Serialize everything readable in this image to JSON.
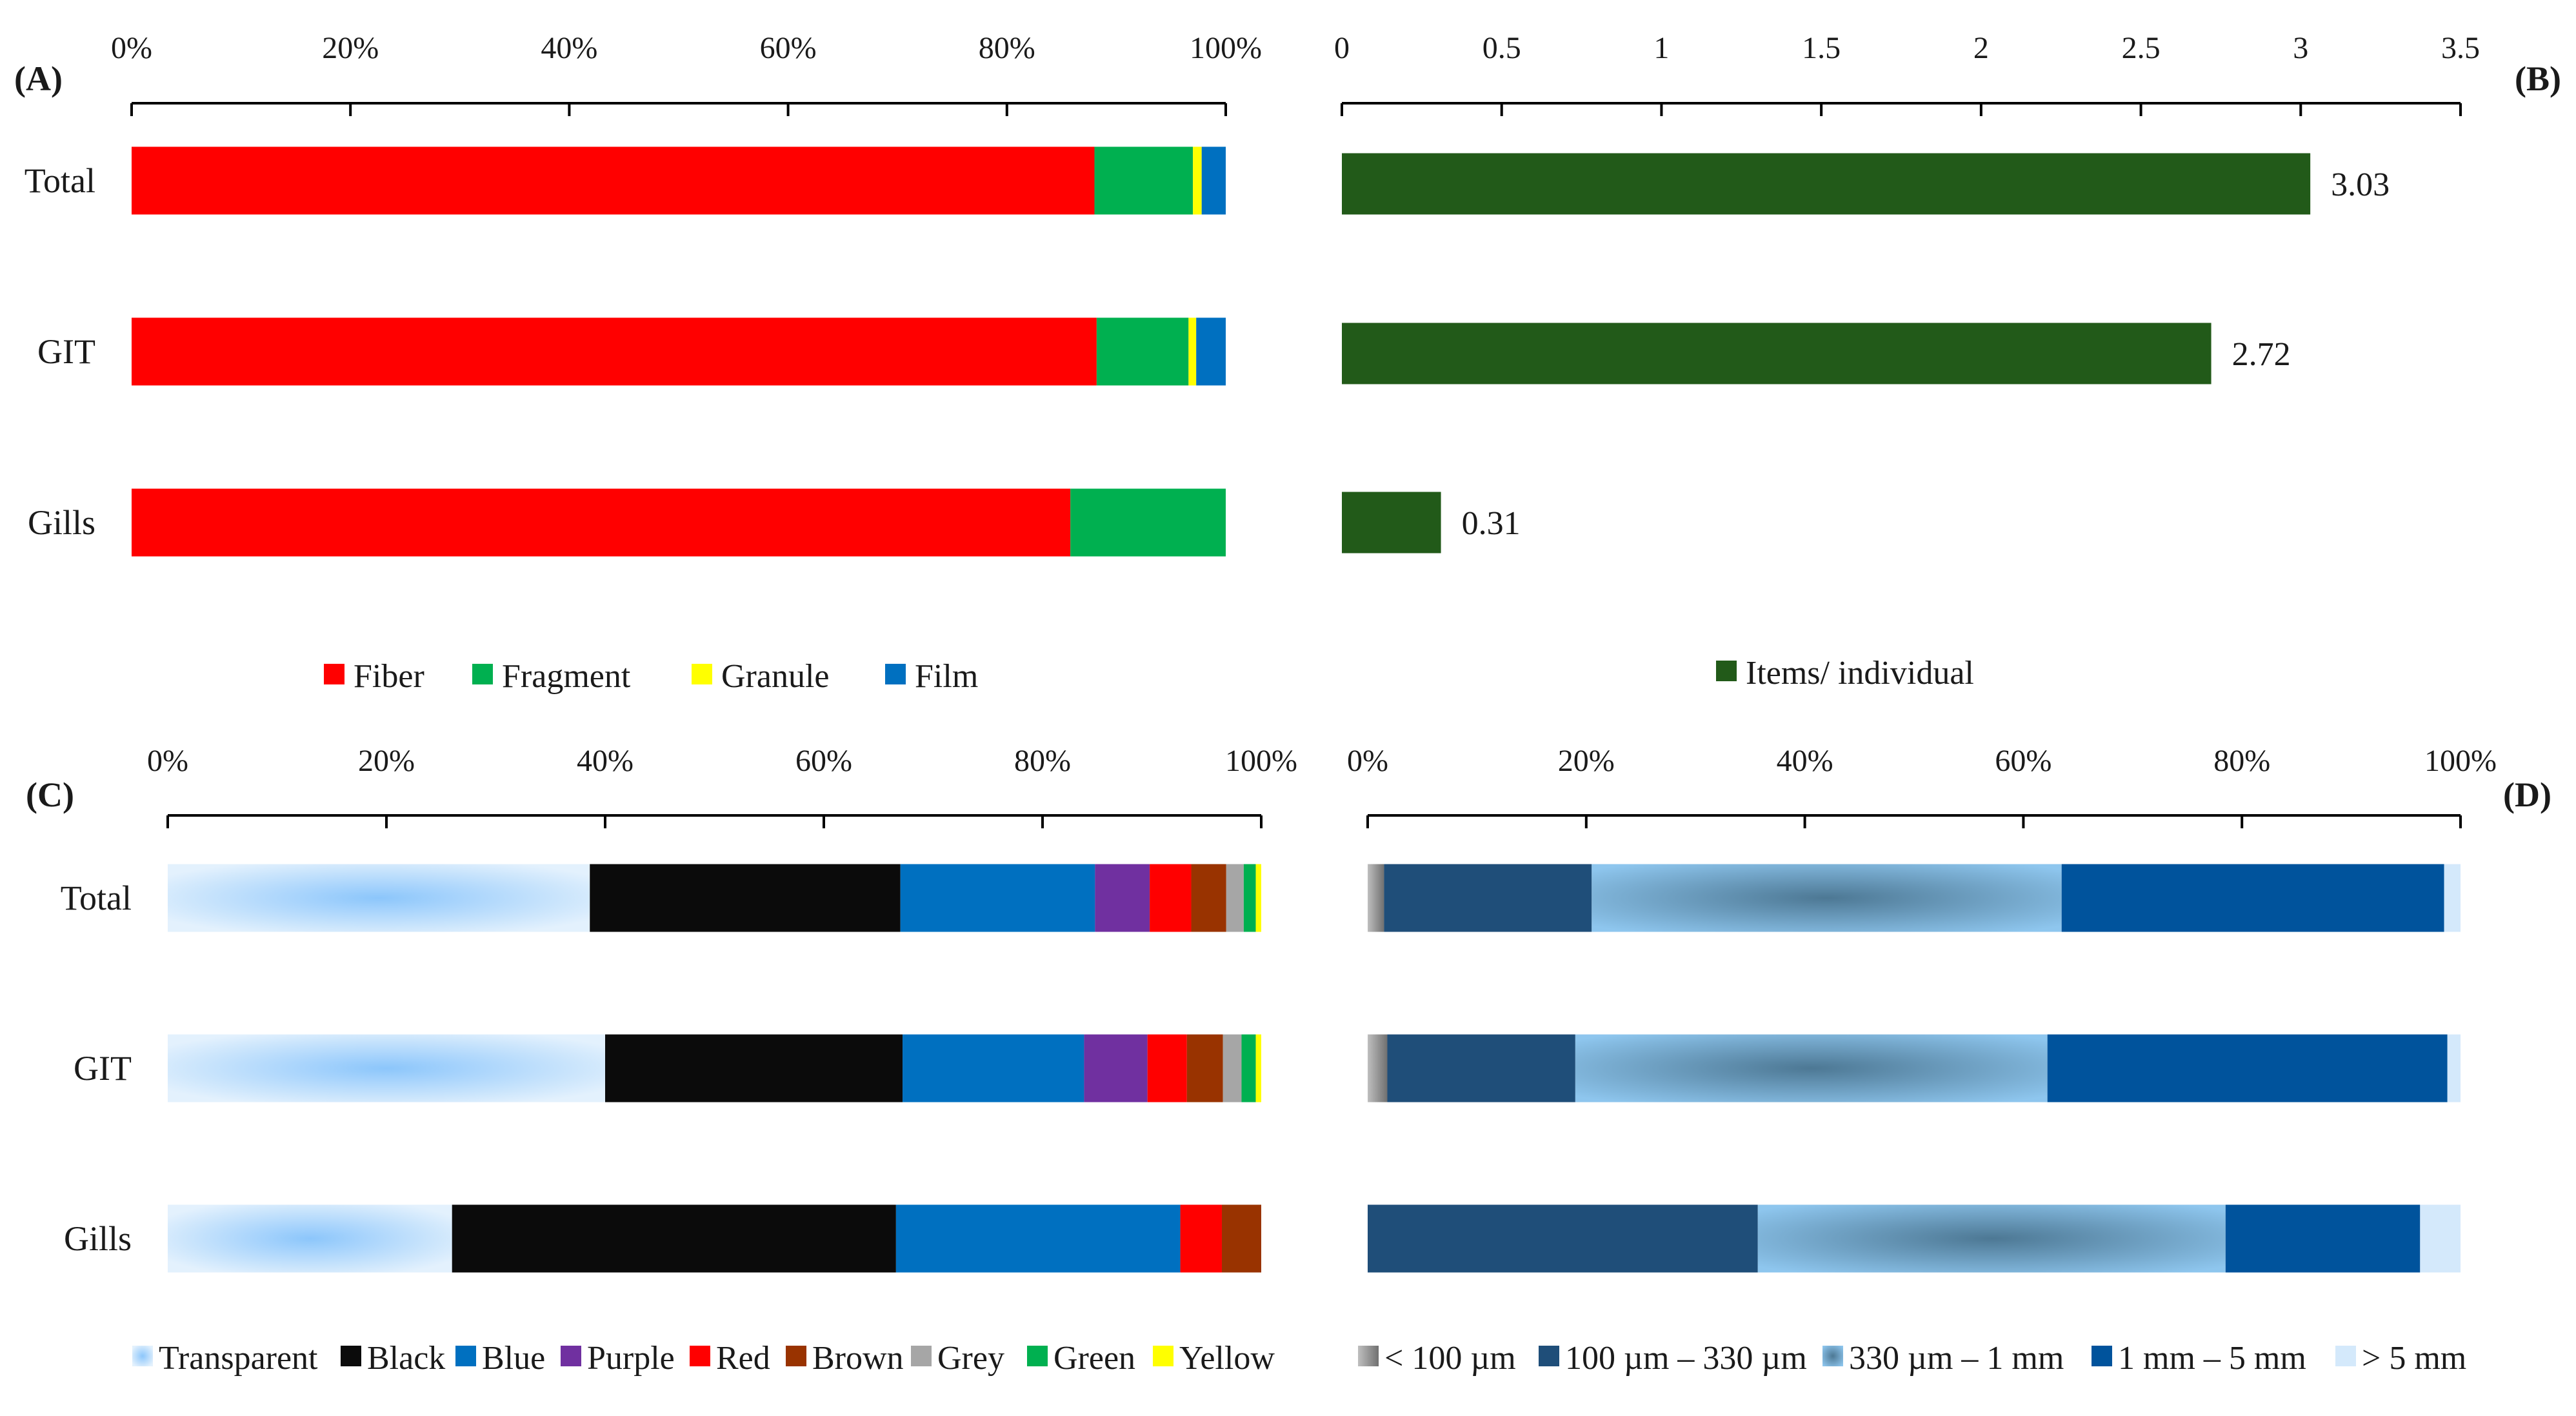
{
  "chart_data": [
    {
      "panel": "(A)",
      "type": "bar",
      "orientation": "horizontal",
      "stacked": "percent",
      "categories": [
        "Total",
        "GIT",
        "Gills"
      ],
      "series": [
        {
          "name": "Fiber",
          "color": "#ff0000",
          "values": [
            88.0,
            88.2,
            85.8
          ]
        },
        {
          "name": "Fragment",
          "color": "#00b050",
          "values": [
            9.0,
            8.4,
            14.2
          ]
        },
        {
          "name": "Granule",
          "color": "#ffff00",
          "values": [
            0.8,
            0.7,
            0
          ]
        },
        {
          "name": "Film",
          "color": "#0070c0",
          "values": [
            2.2,
            2.7,
            0
          ]
        }
      ],
      "xlim": [
        0,
        100
      ],
      "ticks": [
        "0%",
        "20%",
        "40%",
        "60%",
        "80%",
        "100%"
      ],
      "legend_position": "bottom"
    },
    {
      "panel": "(B)",
      "type": "bar",
      "orientation": "horizontal",
      "categories": [
        "Total",
        "GIT",
        "Gills"
      ],
      "series": [
        {
          "name": "Items/ individual",
          "color": "#225a19",
          "values": [
            3.03,
            2.72,
            0.31
          ]
        }
      ],
      "data_labels": [
        "3.03",
        "2.72",
        "0.31"
      ],
      "xlim": [
        0,
        3.5
      ],
      "ticks": [
        "0",
        "0.5",
        "1",
        "1.5",
        "2",
        "2.5",
        "3",
        "3.5"
      ],
      "legend_position": "bottom"
    },
    {
      "panel": "(C)",
      "type": "bar",
      "orientation": "horizontal",
      "stacked": "percent",
      "categories": [
        "Total",
        "GIT",
        "Gills"
      ],
      "series": [
        {
          "name": "Transparent",
          "color": "#9fd0fb",
          "gradient": true,
          "values": [
            38.6,
            40.0,
            26.0
          ]
        },
        {
          "name": "Black",
          "color": "#0b0b0b",
          "values": [
            28.4,
            27.2,
            40.6
          ]
        },
        {
          "name": "Blue",
          "color": "#0070c0",
          "values": [
            17.8,
            16.6,
            26.0
          ]
        },
        {
          "name": "Purple",
          "color": "#7030a0",
          "values": [
            5.0,
            5.8,
            0
          ]
        },
        {
          "name": "Red",
          "color": "#ff0000",
          "values": [
            3.8,
            3.6,
            3.8
          ]
        },
        {
          "name": "Brown",
          "color": "#993300",
          "values": [
            3.2,
            3.3,
            3.6
          ]
        },
        {
          "name": "Grey",
          "color": "#a6a6a6",
          "values": [
            1.6,
            1.7,
            0
          ]
        },
        {
          "name": "Green",
          "color": "#00b050",
          "values": [
            1.1,
            1.3,
            0
          ]
        },
        {
          "name": "Yellow",
          "color": "#ffff00",
          "values": [
            0.5,
            0.5,
            0
          ]
        }
      ],
      "xlim": [
        0,
        100
      ],
      "ticks": [
        "0%",
        "20%",
        "40%",
        "60%",
        "80%",
        "100%"
      ],
      "legend_position": "bottom"
    },
    {
      "panel": "(D)",
      "type": "bar",
      "orientation": "horizontal",
      "stacked": "percent",
      "categories": [
        "Total",
        "GIT",
        "Gills"
      ],
      "series": [
        {
          "name": "< 100 µm",
          "color": "#808080",
          "gradient": true,
          "values": [
            1.5,
            1.8,
            0
          ]
        },
        {
          "name": "100 µm – 330 µm",
          "color": "#1f4e79",
          "values": [
            19.0,
            17.2,
            35.7
          ]
        },
        {
          "name": "330 µm – 1 mm",
          "color": "#7ab4e0",
          "gradient": true,
          "values": [
            43.0,
            43.2,
            42.8
          ]
        },
        {
          "name": "1 mm – 5 mm",
          "color": "#00539c",
          "values": [
            35.0,
            36.6,
            17.8
          ]
        },
        {
          "name": "> 5 mm",
          "color": "#d4e9fb",
          "values": [
            1.5,
            1.2,
            3.7
          ]
        }
      ],
      "xlim": [
        0,
        100
      ],
      "ticks": [
        "0%",
        "20%",
        "40%",
        "60%",
        "80%",
        "100%"
      ],
      "legend_position": "bottom"
    }
  ]
}
